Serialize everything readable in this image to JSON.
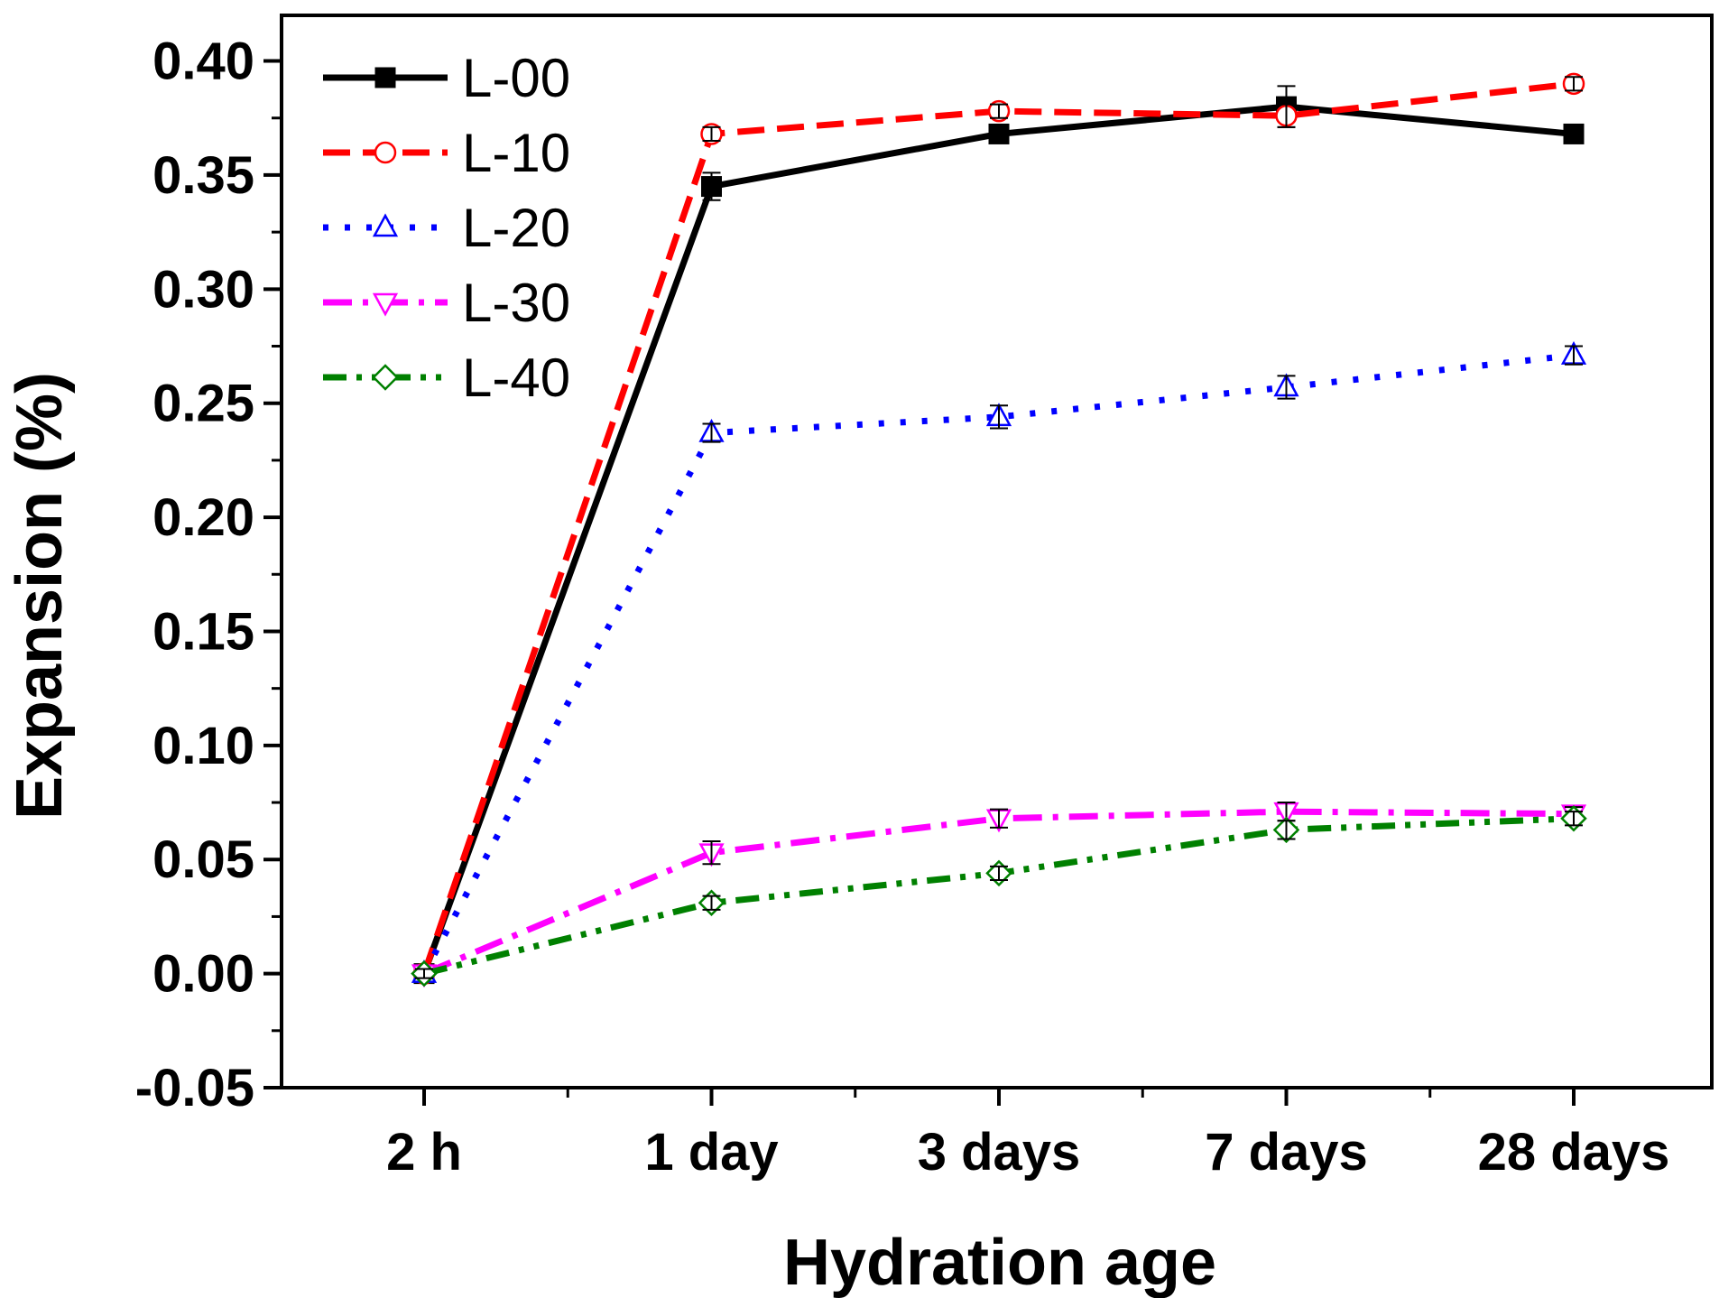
{
  "chart_data": {
    "type": "line",
    "title": "",
    "xlabel": "Hydration age",
    "ylabel": "Expansion (%)",
    "categories": [
      "2 h",
      "1 day",
      "3 days",
      "7 days",
      "28 days"
    ],
    "ylim": [
      -0.05,
      0.42
    ],
    "yticks": [
      -0.05,
      0.0,
      0.05,
      0.1,
      0.15,
      0.2,
      0.25,
      0.3,
      0.35,
      0.4
    ],
    "ytick_labels": [
      "-0.05",
      "0.00",
      "0.05",
      "0.10",
      "0.15",
      "0.20",
      "0.25",
      "0.30",
      "0.35",
      "0.40"
    ],
    "grid": false,
    "legend_position": "top-left",
    "series": [
      {
        "name": "L-00",
        "color": "#000000",
        "dash": "solid",
        "marker": "filled-square",
        "values": [
          0.0,
          0.345,
          0.368,
          0.38,
          0.368
        ],
        "errors": [
          0.002,
          0.006,
          0.003,
          0.009,
          0.003
        ]
      },
      {
        "name": "L-10",
        "color": "#ff0000",
        "dash": "dash",
        "marker": "open-circle",
        "values": [
          0.0,
          0.368,
          0.378,
          0.376,
          0.39
        ],
        "errors": [
          0.002,
          0.003,
          0.003,
          0.005,
          0.003
        ]
      },
      {
        "name": "L-20",
        "color": "#0000ff",
        "dash": "dot",
        "marker": "open-triangle-up",
        "values": [
          0.0,
          0.237,
          0.244,
          0.257,
          0.271
        ],
        "errors": [
          0.002,
          0.004,
          0.005,
          0.005,
          0.004
        ]
      },
      {
        "name": "L-30",
        "color": "#ff00ff",
        "dash": "dash-dot",
        "marker": "open-triangle-down",
        "values": [
          0.0,
          0.053,
          0.068,
          0.071,
          0.07
        ],
        "errors": [
          0.002,
          0.005,
          0.004,
          0.004,
          0.003
        ]
      },
      {
        "name": "L-40",
        "color": "#008000",
        "dash": "dash-dot-dot",
        "marker": "open-diamond",
        "values": [
          0.0,
          0.031,
          0.044,
          0.063,
          0.068
        ],
        "errors": [
          0.002,
          0.003,
          0.003,
          0.004,
          0.003
        ]
      }
    ]
  }
}
